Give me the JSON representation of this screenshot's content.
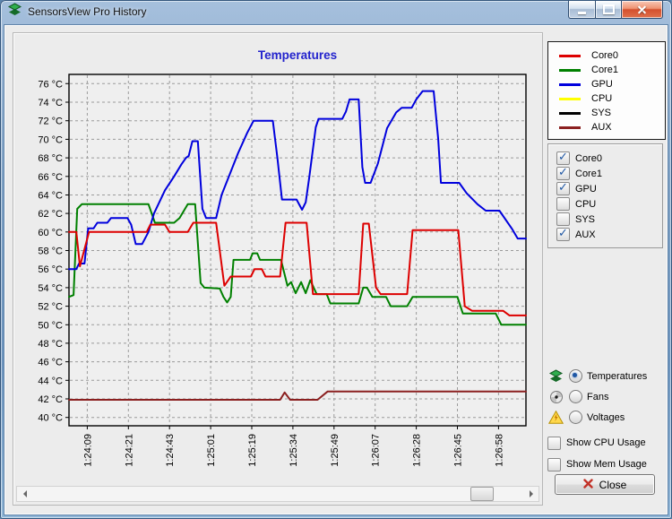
{
  "window": {
    "title": "SensorsView Pro History",
    "controls": [
      "minimize-icon",
      "maximize-icon",
      "close-icon"
    ]
  },
  "chart_data": {
    "type": "line",
    "title": "Temperatures",
    "title_color": "#2323cd",
    "xlabel": "",
    "ylabel": "",
    "grid": true,
    "legend_position": "top-right",
    "y_range": [
      39.1,
      77.0
    ],
    "y_tick_values": [
      76,
      74,
      72,
      70,
      68,
      66,
      64,
      62,
      60,
      58,
      56,
      54,
      52,
      50,
      48,
      46,
      44,
      42,
      40
    ],
    "y_tick_labels": [
      "76 °C",
      "74 °C",
      "72 °C",
      "70 °C",
      "68 °C",
      "66 °C",
      "64 °C",
      "62 °C",
      "60 °C",
      "58 °C",
      "56 °C",
      "54 °C",
      "52 °C",
      "50 °C",
      "48 °C",
      "46 °C",
      "44 °C",
      "42 °C",
      "40 °C"
    ],
    "x_tick_labels": [
      "1:24:09",
      "1:24:21",
      "1:24:43",
      "1:25:01",
      "1:25:19",
      "1:25:34",
      "1:25:49",
      "1:26:07",
      "1:26:28",
      "1:26:45",
      "1:26:58"
    ],
    "x_tick_pos_pct": [
      4,
      13,
      22,
      31,
      40,
      49,
      58,
      67,
      76,
      85,
      94
    ],
    "series": [
      {
        "name": "Core0",
        "color": "#dd0000",
        "visible": true,
        "points": [
          [
            0,
            60
          ],
          [
            1.6,
            60
          ],
          [
            2.4,
            56.3
          ],
          [
            4.4,
            60
          ],
          [
            17,
            60
          ],
          [
            17.8,
            60.8
          ],
          [
            21,
            60.8
          ],
          [
            22,
            60
          ],
          [
            26,
            60
          ],
          [
            27.2,
            61
          ],
          [
            32.2,
            61
          ],
          [
            34,
            54.2
          ],
          [
            35.4,
            55.2
          ],
          [
            39.8,
            55.2
          ],
          [
            40.6,
            56
          ],
          [
            42.2,
            56
          ],
          [
            43,
            55.2
          ],
          [
            46.2,
            55.2
          ],
          [
            47.4,
            61
          ],
          [
            52,
            61
          ],
          [
            53.4,
            53.3
          ],
          [
            63.4,
            53.3
          ],
          [
            64.4,
            60.9
          ],
          [
            65.6,
            60.9
          ],
          [
            67.2,
            54
          ],
          [
            68.2,
            53.3
          ],
          [
            74,
            53.3
          ],
          [
            75.2,
            60.2
          ],
          [
            85.2,
            60.2
          ],
          [
            86.6,
            52
          ],
          [
            88.2,
            51.5
          ],
          [
            95,
            51.5
          ],
          [
            96.4,
            51
          ],
          [
            100,
            51
          ]
        ]
      },
      {
        "name": "Core1",
        "color": "#008000",
        "visible": true,
        "points": [
          [
            0,
            53
          ],
          [
            1,
            53.2
          ],
          [
            1.8,
            62.5
          ],
          [
            2.8,
            63
          ],
          [
            17.4,
            63
          ],
          [
            18.8,
            61
          ],
          [
            23,
            61
          ],
          [
            24.2,
            61.5
          ],
          [
            26,
            63
          ],
          [
            27.6,
            63
          ],
          [
            28.8,
            54.5
          ],
          [
            29.6,
            54
          ],
          [
            33,
            53.9
          ],
          [
            33.8,
            53
          ],
          [
            34.6,
            52.4
          ],
          [
            35.4,
            53
          ],
          [
            36,
            57
          ],
          [
            39.6,
            57
          ],
          [
            40.2,
            57.7
          ],
          [
            41.2,
            57.7
          ],
          [
            41.8,
            57
          ],
          [
            46.4,
            57
          ],
          [
            47.8,
            54.2
          ],
          [
            48.6,
            54.6
          ],
          [
            49.6,
            53.4
          ],
          [
            50.8,
            54.6
          ],
          [
            51.8,
            53.4
          ],
          [
            52.8,
            54.8
          ],
          [
            54.2,
            53.3
          ],
          [
            56.4,
            53.3
          ],
          [
            57.2,
            52.3
          ],
          [
            63.4,
            52.3
          ],
          [
            64.4,
            54
          ],
          [
            65.2,
            54
          ],
          [
            66.4,
            53
          ],
          [
            69.4,
            53
          ],
          [
            70.4,
            52
          ],
          [
            74,
            52
          ],
          [
            75.2,
            53
          ],
          [
            85,
            53
          ],
          [
            86.2,
            51.2
          ],
          [
            93.4,
            51.2
          ],
          [
            94.6,
            50
          ],
          [
            100,
            50
          ]
        ]
      },
      {
        "name": "GPU",
        "color": "#0000dd",
        "visible": true,
        "points": [
          [
            0,
            56
          ],
          [
            1.6,
            56
          ],
          [
            2.2,
            56.6
          ],
          [
            3.4,
            56.6
          ],
          [
            4.2,
            60.4
          ],
          [
            5.4,
            60.4
          ],
          [
            6.2,
            61
          ],
          [
            8.4,
            61
          ],
          [
            9.2,
            61.5
          ],
          [
            12.8,
            61.5
          ],
          [
            13.6,
            60.8
          ],
          [
            14.6,
            58.7
          ],
          [
            16,
            58.7
          ],
          [
            17.4,
            60
          ],
          [
            18.6,
            62
          ],
          [
            21,
            64.5
          ],
          [
            23,
            66
          ],
          [
            24.6,
            67.3
          ],
          [
            25.6,
            68
          ],
          [
            26.2,
            68.2
          ],
          [
            27,
            69.8
          ],
          [
            28.2,
            69.8
          ],
          [
            29.2,
            62.5
          ],
          [
            30,
            61.5
          ],
          [
            32.2,
            61.5
          ],
          [
            33.4,
            64
          ],
          [
            35,
            66
          ],
          [
            37,
            68.5
          ],
          [
            39,
            70.7
          ],
          [
            40.4,
            72
          ],
          [
            44.6,
            72
          ],
          [
            45.6,
            68
          ],
          [
            46.6,
            63.5
          ],
          [
            49.8,
            63.5
          ],
          [
            51,
            62.4
          ],
          [
            51.8,
            63.2
          ],
          [
            52.6,
            66
          ],
          [
            54,
            71.3
          ],
          [
            54.6,
            72.2
          ],
          [
            59.8,
            72.2
          ],
          [
            60.6,
            73
          ],
          [
            61.4,
            74.3
          ],
          [
            63.4,
            74.3
          ],
          [
            64.2,
            67
          ],
          [
            64.8,
            65.3
          ],
          [
            66,
            65.3
          ],
          [
            67.6,
            67.4
          ],
          [
            69.6,
            71.2
          ],
          [
            71.6,
            72.9
          ],
          [
            72.8,
            73.4
          ],
          [
            75,
            73.4
          ],
          [
            76,
            74.3
          ],
          [
            77.4,
            75.2
          ],
          [
            79.8,
            75.2
          ],
          [
            80.8,
            70
          ],
          [
            81.4,
            65.3
          ],
          [
            85.4,
            65.3
          ],
          [
            87,
            64.2
          ],
          [
            89.4,
            63
          ],
          [
            91.2,
            62.3
          ],
          [
            94.2,
            62.3
          ],
          [
            97,
            60.3
          ],
          [
            98.2,
            59.3
          ],
          [
            100,
            59.3
          ]
        ]
      },
      {
        "name": "CPU",
        "color": "#ffff00",
        "visible": false,
        "points": []
      },
      {
        "name": "SYS",
        "color": "#000000",
        "visible": false,
        "points": []
      },
      {
        "name": "AUX",
        "color": "#8b2020",
        "visible": true,
        "points": [
          [
            0,
            41.9
          ],
          [
            46.2,
            41.9
          ],
          [
            47.2,
            42.7
          ],
          [
            48.4,
            41.9
          ],
          [
            54.4,
            41.9
          ],
          [
            56.6,
            42.8
          ],
          [
            100,
            42.8
          ]
        ]
      }
    ]
  },
  "series_toggles": [
    {
      "label": "Core0",
      "checked": true
    },
    {
      "label": "Core1",
      "checked": true
    },
    {
      "label": "GPU",
      "checked": true
    },
    {
      "label": "CPU",
      "checked": false
    },
    {
      "label": "SYS",
      "checked": false
    },
    {
      "label": "AUX",
      "checked": true
    }
  ],
  "mode_options": [
    {
      "label": "Temperatures",
      "selected": true,
      "icon": "temperature-chip-icon"
    },
    {
      "label": "Fans",
      "selected": false,
      "icon": "fan-icon"
    },
    {
      "label": "Voltages",
      "selected": false,
      "icon": "voltage-icon"
    }
  ],
  "usage_toggles": [
    {
      "label": "Show CPU Usage",
      "checked": false
    },
    {
      "label": "Show Mem Usage",
      "checked": false
    }
  ],
  "close_button": {
    "label": "Close"
  },
  "scrollbar": {
    "thumb_pos_pct": 89
  }
}
